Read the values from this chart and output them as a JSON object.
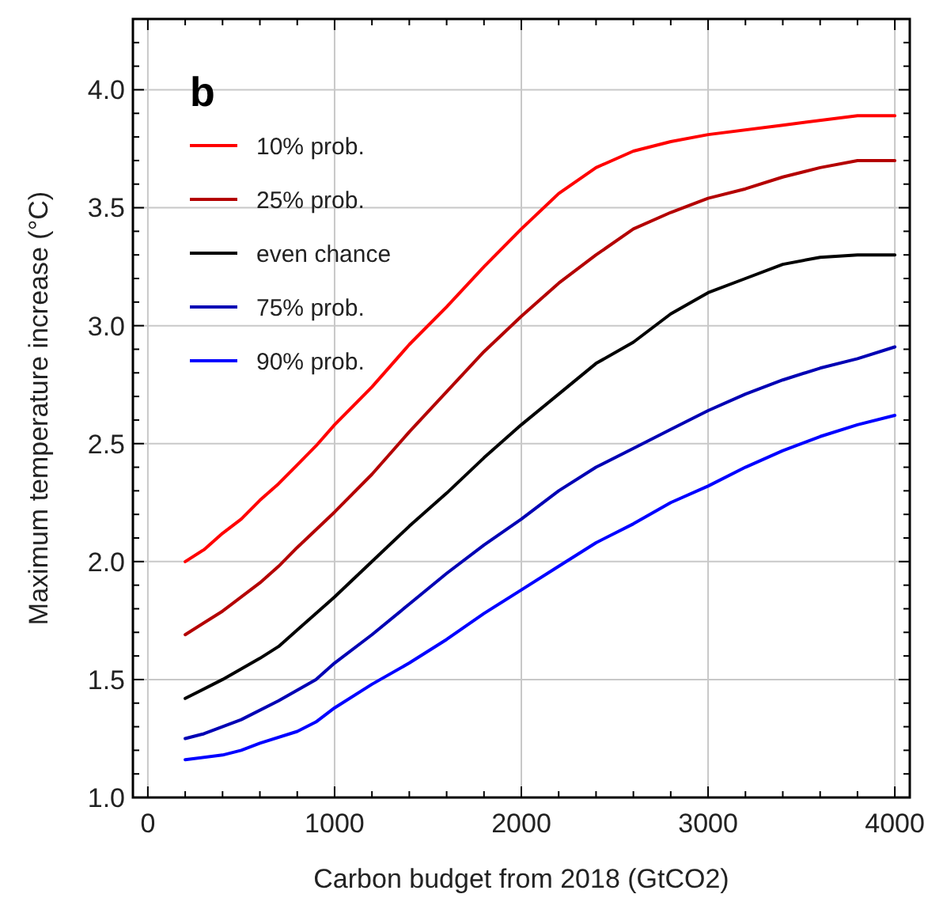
{
  "chart_data": {
    "type": "line",
    "title": "b",
    "xlabel": "Carbon budget from 2018 (GtCO2)",
    "ylabel": "Maximum temperature increase (°C)",
    "xlim": [
      -80,
      4080
    ],
    "ylim": [
      1.0,
      4.3
    ],
    "xticks": [
      0,
      {
        "value": 200,
        "label": null
      },
      {
        "value": 400,
        "label": null
      },
      {
        "value": 600,
        "label": null
      },
      {
        "value": 800,
        "label": null
      },
      1000,
      {
        "value": 1200,
        "label": null
      },
      {
        "value": 1400,
        "label": null
      },
      {
        "value": 1600,
        "label": null
      },
      {
        "value": 1800,
        "label": null
      },
      2000,
      {
        "value": 2200,
        "label": null
      },
      {
        "value": 2400,
        "label": null
      },
      {
        "value": 2600,
        "label": null
      },
      {
        "value": 2800,
        "label": null
      },
      3000,
      {
        "value": 3200,
        "label": null
      },
      {
        "value": 3400,
        "label": null
      },
      {
        "value": 3600,
        "label": null
      },
      {
        "value": 3800,
        "label": null
      },
      4000
    ],
    "yticks": [
      {
        "value": 1.0,
        "label": "1.0"
      },
      {
        "value": 1.1,
        "label": null
      },
      {
        "value": 1.2,
        "label": null
      },
      {
        "value": 1.3,
        "label": null
      },
      {
        "value": 1.4,
        "label": null
      },
      1.5,
      {
        "value": 1.6,
        "label": null
      },
      {
        "value": 1.7,
        "label": null
      },
      {
        "value": 1.8,
        "label": null
      },
      {
        "value": 1.9,
        "label": null
      },
      {
        "value": 2.0,
        "label": "2.0"
      },
      {
        "value": 2.1,
        "label": null
      },
      {
        "value": 2.2,
        "label": null
      },
      {
        "value": 2.3,
        "label": null
      },
      {
        "value": 2.4,
        "label": null
      },
      2.5,
      {
        "value": 2.6,
        "label": null
      },
      {
        "value": 2.7,
        "label": null
      },
      {
        "value": 2.8,
        "label": null
      },
      {
        "value": 2.9,
        "label": null
      },
      {
        "value": 3.0,
        "label": "3.0"
      },
      {
        "value": 3.1,
        "label": null
      },
      {
        "value": 3.2,
        "label": null
      },
      {
        "value": 3.3,
        "label": null
      },
      {
        "value": 3.4,
        "label": null
      },
      3.5,
      {
        "value": 3.6,
        "label": null
      },
      {
        "value": 3.7,
        "label": null
      },
      {
        "value": 3.8,
        "label": null
      },
      {
        "value": 3.9,
        "label": null
      },
      {
        "value": 4.0,
        "label": "4.0"
      },
      {
        "value": 4.1,
        "label": null
      },
      {
        "value": 4.2,
        "label": null
      }
    ],
    "grid": true,
    "legend": "top left",
    "line_style": "solid",
    "series": [
      {
        "name": "10% prob.",
        "color": "#ff0000",
        "x": [
          200,
          300,
          400,
          500,
          600,
          700,
          800,
          900,
          1000,
          1200,
          1400,
          1600,
          1800,
          2000,
          2200,
          2400,
          2600,
          2800,
          3000,
          3400,
          3800,
          4000
        ],
        "values": [
          2.0,
          2.05,
          2.12,
          2.18,
          2.26,
          2.33,
          2.41,
          2.49,
          2.58,
          2.74,
          2.92,
          3.08,
          3.25,
          3.41,
          3.56,
          3.67,
          3.74,
          3.78,
          3.81,
          3.85,
          3.89,
          3.89
        ]
      },
      {
        "name": "25% prob.",
        "color": "#b40000",
        "x": [
          200,
          400,
          600,
          700,
          800,
          1000,
          1200,
          1400,
          1600,
          1800,
          2000,
          2200,
          2400,
          2600,
          2800,
          3000,
          3200,
          3400,
          3600,
          3800,
          4000
        ],
        "values": [
          1.69,
          1.79,
          1.91,
          1.98,
          2.06,
          2.21,
          2.37,
          2.55,
          2.72,
          2.89,
          3.04,
          3.18,
          3.3,
          3.41,
          3.48,
          3.54,
          3.58,
          3.63,
          3.67,
          3.7,
          3.7
        ]
      },
      {
        "name": "even chance",
        "color": "#000000",
        "x": [
          200,
          400,
          600,
          700,
          800,
          1000,
          1200,
          1400,
          1600,
          1800,
          2000,
          2200,
          2400,
          2600,
          2800,
          3000,
          3200,
          3400,
          3600,
          3800,
          4000
        ],
        "values": [
          1.42,
          1.5,
          1.59,
          1.64,
          1.71,
          1.85,
          2.0,
          2.15,
          2.29,
          2.44,
          2.58,
          2.71,
          2.84,
          2.93,
          3.05,
          3.14,
          3.2,
          3.26,
          3.29,
          3.3,
          3.3
        ]
      },
      {
        "name": "75% prob.",
        "color": "#0000b4",
        "x": [
          200,
          300,
          500,
          700,
          900,
          1000,
          1200,
          1400,
          1600,
          1800,
          2000,
          2200,
          2400,
          2600,
          2800,
          3000,
          3200,
          3400,
          3600,
          3800,
          4000
        ],
        "values": [
          1.25,
          1.27,
          1.33,
          1.41,
          1.5,
          1.57,
          1.69,
          1.82,
          1.95,
          2.07,
          2.18,
          2.3,
          2.4,
          2.48,
          2.56,
          2.64,
          2.71,
          2.77,
          2.82,
          2.86,
          2.91
        ]
      },
      {
        "name": "90% prob.",
        "color": "#0000ff",
        "x": [
          200,
          400,
          500,
          600,
          800,
          900,
          1000,
          1200,
          1400,
          1600,
          1800,
          2000,
          2200,
          2400,
          2600,
          2800,
          3000,
          3200,
          3400,
          3600,
          3800,
          4000
        ],
        "values": [
          1.16,
          1.18,
          1.2,
          1.23,
          1.28,
          1.32,
          1.38,
          1.48,
          1.57,
          1.67,
          1.78,
          1.88,
          1.98,
          2.08,
          2.16,
          2.25,
          2.32,
          2.4,
          2.47,
          2.53,
          2.58,
          2.62
        ]
      }
    ]
  }
}
